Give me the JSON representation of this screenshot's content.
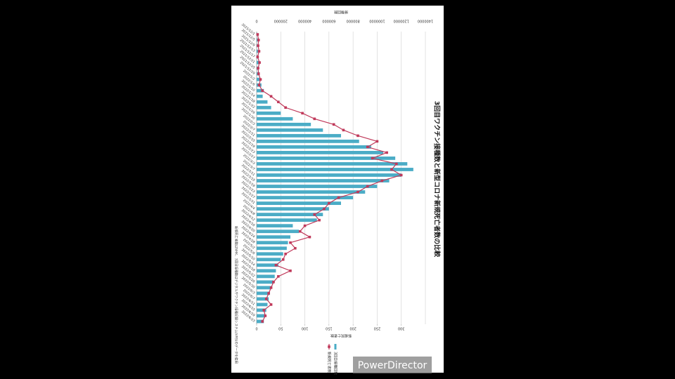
{
  "chart_data": {
    "type": "bar",
    "title": "3回目ワクチン接種数と新型コロナ新規死亡者数の比較",
    "y_label": "接種回数",
    "y2_label": "新規死亡者数",
    "annotation": "新規死亡者数はNHK、3回目接種数はデジタル庁ワクチン接種記録システム(VRS)のデータを使用",
    "categories": [
      "2021/12/1",
      "2021/12/5",
      "2021/12/9",
      "2021/12/13",
      "2021/12/17",
      "2021/12/21",
      "2021/12/25",
      "2021/12/29",
      "2022/1/2",
      "2022/1/6",
      "2022/1/10",
      "2022/1/14",
      "2022/1/18",
      "2022/1/22",
      "2022/1/26",
      "2022/1/30",
      "2022/2/3",
      "2022/2/7",
      "2022/2/11",
      "2022/2/15",
      "2022/2/19",
      "2022/2/23",
      "2022/2/27",
      "2022/3/3",
      "2022/3/7",
      "2022/3/11",
      "2022/3/15",
      "2022/3/19",
      "2022/3/23",
      "2022/3/27",
      "2022/3/31",
      "2022/4/4",
      "2022/4/8",
      "2022/4/12",
      "2022/4/16",
      "2022/4/20",
      "2022/4/24",
      "2022/4/28",
      "2022/5/2",
      "2022/5/6",
      "2022/5/10",
      "2022/5/14",
      "2022/5/18",
      "2022/5/22",
      "2022/5/26",
      "2022/5/30",
      "2022/6/3",
      "2022/6/7",
      "2022/6/11",
      "2022/6/15",
      "2022/6/19",
      "2022/6/23"
    ],
    "series": [
      {
        "name": "3回目接種回数",
        "type": "bar",
        "color": "#4bacc6",
        "values": [
          5000,
          8000,
          6000,
          10000,
          12000,
          20000,
          15000,
          25000,
          30000,
          40000,
          60000,
          50000,
          90000,
          120000,
          200000,
          300000,
          450000,
          550000,
          700000,
          850000,
          950000,
          1050000,
          1150000,
          1250000,
          1300000,
          1200000,
          1100000,
          1000000,
          900000,
          800000,
          700000,
          600000,
          550000,
          500000,
          300000,
          350000,
          280000,
          260000,
          250000,
          220000,
          200000,
          180000,
          160000,
          150000,
          140000,
          120000,
          110000,
          100000,
          90000,
          80000,
          70000,
          60000
        ]
      },
      {
        "name": "新規死亡者数",
        "type": "line",
        "axis": "y2",
        "color": "#c0395a",
        "values": [
          2,
          4,
          3,
          5,
          2,
          6,
          3,
          4,
          8,
          5,
          12,
          30,
          45,
          60,
          95,
          120,
          160,
          180,
          210,
          250,
          230,
          270,
          240,
          290,
          280,
          300,
          260,
          230,
          210,
          170,
          150,
          140,
          120,
          130,
          100,
          90,
          110,
          70,
          80,
          60,
          55,
          40,
          70,
          45,
          35,
          30,
          25,
          20,
          30,
          15,
          18,
          12
        ]
      }
    ],
    "ylim": [
      0,
      1400000
    ],
    "yticks": [
      0,
      200000,
      400000,
      600000,
      800000,
      1000000,
      1200000,
      1400000
    ],
    "y2lim": [
      0,
      350
    ],
    "y2ticks": [
      0,
      50,
      100,
      150,
      200,
      250,
      300
    ],
    "grid": true,
    "legend": "bottom"
  },
  "watermark": "PowerDirector"
}
